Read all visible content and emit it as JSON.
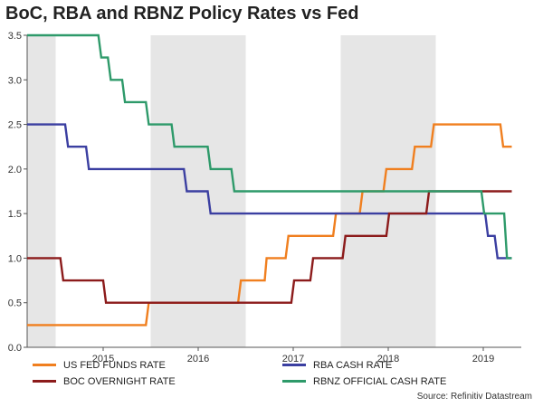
{
  "chart_data": {
    "type": "line",
    "title": "BoC, RBA and RBNZ Policy Rates vs Fed",
    "xlabel": "",
    "ylabel": "",
    "xlim": [
      2014.2,
      2019.4
    ],
    "ylim": [
      0,
      3.5
    ],
    "yticks": [
      "0.0",
      "0.5",
      "1.0",
      "1.5",
      "2.0",
      "2.5",
      "3.0",
      "3.5"
    ],
    "ytick_values": [
      0,
      0.5,
      1.0,
      1.5,
      2.0,
      2.5,
      3.0,
      3.5
    ],
    "xticks": [
      "2015",
      "2016",
      "2017",
      "2018",
      "2019"
    ],
    "xtick_values": [
      2015.0,
      2016.0,
      2017.0,
      2018.0,
      2019.0
    ],
    "shaded_periods": [
      [
        2014.2,
        2014.5
      ],
      [
        2015.5,
        2016.5
      ],
      [
        2017.5,
        2018.5
      ]
    ],
    "series": [
      {
        "name": "US FED FUNDS RATE",
        "color": "#f07f1f",
        "points": [
          [
            2014.2,
            0.25
          ],
          [
            2015.45,
            0.25
          ],
          [
            2015.48,
            0.5
          ],
          [
            2016.42,
            0.5
          ],
          [
            2016.45,
            0.75
          ],
          [
            2016.7,
            0.75
          ],
          [
            2016.72,
            1.0
          ],
          [
            2016.92,
            1.0
          ],
          [
            2016.95,
            1.25
          ],
          [
            2017.42,
            1.25
          ],
          [
            2017.45,
            1.5
          ],
          [
            2017.7,
            1.5
          ],
          [
            2017.73,
            1.75
          ],
          [
            2017.95,
            1.75
          ],
          [
            2017.98,
            2.0
          ],
          [
            2018.25,
            2.0
          ],
          [
            2018.28,
            2.25
          ],
          [
            2018.45,
            2.25
          ],
          [
            2018.48,
            2.5
          ],
          [
            2019.18,
            2.5
          ],
          [
            2019.21,
            2.25
          ],
          [
            2019.3,
            2.25
          ]
        ]
      },
      {
        "name": "RBA CASH RATE",
        "color": "#3b3fa1",
        "points": [
          [
            2014.2,
            2.5
          ],
          [
            2014.6,
            2.5
          ],
          [
            2014.63,
            2.25
          ],
          [
            2014.82,
            2.25
          ],
          [
            2014.85,
            2.0
          ],
          [
            2015.85,
            2.0
          ],
          [
            2015.88,
            1.75
          ],
          [
            2016.1,
            1.75
          ],
          [
            2016.13,
            1.5
          ],
          [
            2019.02,
            1.5
          ],
          [
            2019.05,
            1.25
          ],
          [
            2019.12,
            1.25
          ],
          [
            2019.15,
            1.0
          ],
          [
            2019.3,
            1.0
          ]
        ]
      },
      {
        "name": "BOC OVERNIGHT RATE",
        "color": "#8c1b1b",
        "points": [
          [
            2014.2,
            1.0
          ],
          [
            2014.55,
            1.0
          ],
          [
            2014.58,
            0.75
          ],
          [
            2015.0,
            0.75
          ],
          [
            2015.03,
            0.5
          ],
          [
            2016.98,
            0.5
          ],
          [
            2017.01,
            0.75
          ],
          [
            2017.18,
            0.75
          ],
          [
            2017.21,
            1.0
          ],
          [
            2017.52,
            1.0
          ],
          [
            2017.55,
            1.25
          ],
          [
            2017.98,
            1.25
          ],
          [
            2018.01,
            1.5
          ],
          [
            2018.4,
            1.5
          ],
          [
            2018.43,
            1.75
          ],
          [
            2019.3,
            1.75
          ]
        ]
      },
      {
        "name": "RBNZ OFFICIAL CASH RATE",
        "color": "#2e9a6a",
        "points": [
          [
            2014.2,
            3.5
          ],
          [
            2014.95,
            3.5
          ],
          [
            2014.98,
            3.25
          ],
          [
            2015.05,
            3.25
          ],
          [
            2015.08,
            3.0
          ],
          [
            2015.2,
            3.0
          ],
          [
            2015.23,
            2.75
          ],
          [
            2015.45,
            2.75
          ],
          [
            2015.48,
            2.5
          ],
          [
            2015.72,
            2.5
          ],
          [
            2015.75,
            2.25
          ],
          [
            2016.1,
            2.25
          ],
          [
            2016.13,
            2.0
          ],
          [
            2016.35,
            2.0
          ],
          [
            2016.38,
            1.75
          ],
          [
            2018.98,
            1.75
          ],
          [
            2019.01,
            1.5
          ],
          [
            2019.22,
            1.5
          ],
          [
            2019.25,
            1.0
          ],
          [
            2019.3,
            1.0
          ]
        ]
      }
    ],
    "legend_position": "bottom",
    "source": "Source: Refinitiv Datastream"
  }
}
